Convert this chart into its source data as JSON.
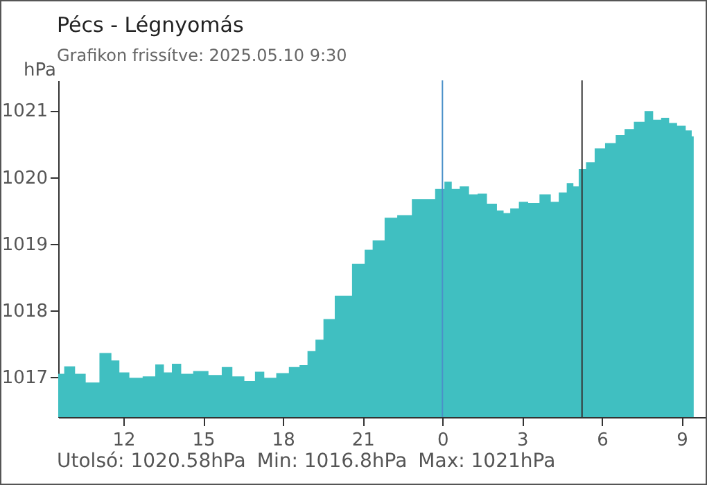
{
  "chart_data": {
    "type": "area",
    "title": "Pécs - Légnyomás",
    "subtitle": "Grafikon frissítve: 2025.05.10 9:30",
    "ylabel": "hPa",
    "annotations": [
      "Utolsó: 1020.58hPa",
      "Min: 1016.8hPa",
      "Max: 1021hPa"
    ],
    "x": [
      "2025-05-09T09:33",
      "2025-05-09T10:00",
      "2025-05-09T10:22",
      "2025-05-09T10:48",
      "2025-05-09T11:24",
      "2025-05-09T11:42",
      "2025-05-09T12:00",
      "2025-05-09T12:27",
      "2025-05-09T13:00",
      "2025-05-09T13:24",
      "2025-05-09T13:39",
      "2025-05-09T14:00",
      "2025-05-09T14:21",
      "2025-05-09T14:54",
      "2025-05-09T15:30",
      "2025-05-09T15:54",
      "2025-05-09T16:18",
      "2025-05-09T16:48",
      "2025-05-09T17:06",
      "2025-05-09T17:30",
      "2025-05-09T18:00",
      "2025-05-09T18:27",
      "2025-05-09T18:48",
      "2025-05-09T19:03",
      "2025-05-09T19:24",
      "2025-05-09T19:39",
      "2025-05-09T20:15",
      "2025-05-09T20:57",
      "2025-05-09T21:12",
      "2025-05-09T21:33",
      "2025-05-09T22:06",
      "2025-05-09T22:30",
      "2025-05-09T23:12",
      "2025-05-09T23:30",
      "2025-05-09T23:57",
      "2025-05-10T00:12",
      "2025-05-10T00:30",
      "2025-05-10T00:48",
      "2025-05-10T01:12",
      "2025-05-10T01:27",
      "2025-05-10T01:54",
      "2025-05-10T02:12",
      "2025-05-10T02:24",
      "2025-05-10T02:42",
      "2025-05-10T03:03",
      "2025-05-10T03:24",
      "2025-05-10T03:54",
      "2025-05-10T04:15",
      "2025-05-10T04:30",
      "2025-05-10T04:51",
      "2025-05-10T05:00",
      "2025-05-10T05:15",
      "2025-05-10T05:33",
      "2025-05-10T05:54",
      "2025-05-10T06:20",
      "2025-05-10T06:42",
      "2025-05-10T07:00",
      "2025-05-10T07:24",
      "2025-05-10T07:48",
      "2025-05-10T08:03",
      "2025-05-10T08:24",
      "2025-05-10T08:39",
      "2025-05-10T09:00",
      "2025-05-10T09:18",
      "2025-05-10T09:27"
    ],
    "series": [
      {
        "color": "#40bfc1",
        "values": [
          1017.05,
          1017.16,
          1017.05,
          1016.92,
          1017.36,
          1017.25,
          1017.07,
          1016.99,
          1017.01,
          1017.19,
          1017.07,
          1017.2,
          1017.05,
          1017.09,
          1017.03,
          1017.15,
          1017.01,
          1016.94,
          1017.08,
          1016.99,
          1017.06,
          1017.15,
          1017.18,
          1017.39,
          1017.56,
          1017.87,
          1018.22,
          1018.7,
          1018.91,
          1019.05,
          1019.39,
          1019.43,
          1019.67,
          1019.67,
          1019.82,
          1019.93,
          1019.82,
          1019.86,
          1019.74,
          1019.75,
          1019.6,
          1019.5,
          1019.46,
          1019.53,
          1019.63,
          1019.61,
          1019.74,
          1019.63,
          1019.77,
          1019.91,
          1019.86,
          1020.12,
          1020.22,
          1020.43,
          1020.51,
          1020.63,
          1020.72,
          1020.83,
          1020.99,
          1020.86,
          1020.89,
          1020.81,
          1020.77,
          1020.7,
          1020.61
        ]
      }
    ],
    "xlim": [
      "2025-05-09T09:33",
      "2025-05-10T09:57"
    ],
    "ylim": [
      1016.4,
      1021.45
    ],
    "xticks": [
      {
        "value": "2025-05-09T12:00",
        "label": "12"
      },
      {
        "value": "2025-05-09T15:00",
        "label": "15"
      },
      {
        "value": "2025-05-09T18:00",
        "label": "18"
      },
      {
        "value": "2025-05-09T21:00",
        "label": "21"
      },
      {
        "value": "2025-05-10T00:00",
        "label": "0"
      },
      {
        "value": "2025-05-10T03:00",
        "label": "3"
      },
      {
        "value": "2025-05-10T06:00",
        "label": "6"
      },
      {
        "value": "2025-05-10T09:00",
        "label": "9"
      }
    ],
    "yticks": [
      1017,
      1018,
      1019,
      1020,
      1021
    ],
    "ref_lines": [
      {
        "axis": "x",
        "value": "2025-05-10T00:00",
        "color": "#4a90c8"
      },
      {
        "axis": "x",
        "value": "2025-05-10T05:15",
        "color": "#333333"
      }
    ]
  }
}
